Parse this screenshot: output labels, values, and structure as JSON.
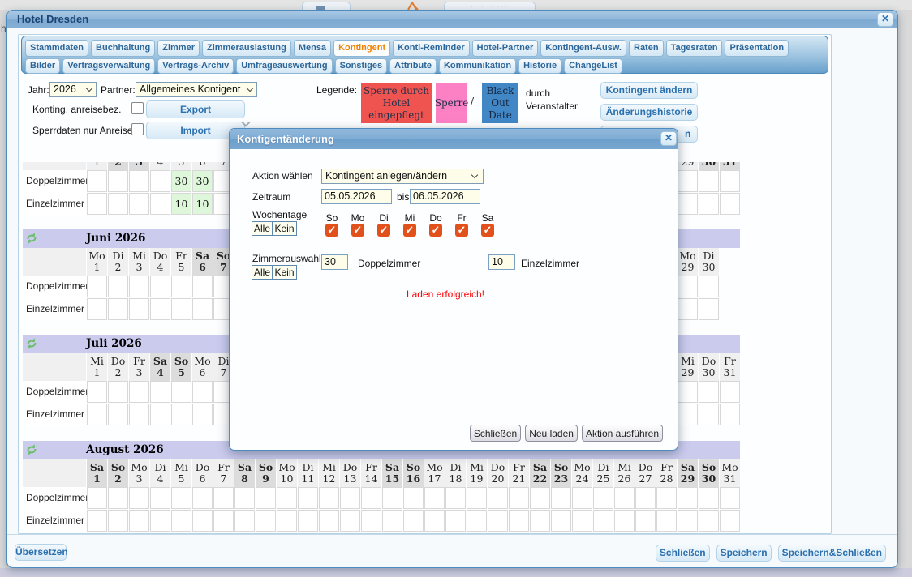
{
  "page": {
    "edge_text": "h"
  },
  "window": {
    "title": "Hotel Dresden"
  },
  "tabs": {
    "row1": [
      {
        "label": "Stammdaten",
        "active": false
      },
      {
        "label": "Buchhaltung",
        "active": false
      },
      {
        "label": "Zimmer",
        "active": false
      },
      {
        "label": "Zimmerauslastung",
        "active": false
      },
      {
        "label": "Mensa",
        "active": false
      },
      {
        "label": "Kontingent",
        "active": true
      },
      {
        "label": "Konti-Reminder",
        "active": false
      },
      {
        "label": "Hotel-Partner",
        "active": false
      },
      {
        "label": "Kontingent-Ausw.",
        "active": false
      },
      {
        "label": "Raten",
        "active": false
      },
      {
        "label": "Tagesraten",
        "active": false
      },
      {
        "label": "Präsentation",
        "active": false
      }
    ],
    "row2": [
      {
        "label": "Bilder",
        "active": false
      },
      {
        "label": "Vertragsverwaltung",
        "active": false
      },
      {
        "label": "Vertrags-Archiv",
        "active": false
      },
      {
        "label": "Umfrageauswertung",
        "active": false
      },
      {
        "label": "Sonstiges",
        "active": false
      },
      {
        "label": "Attribute",
        "active": false
      },
      {
        "label": "Kommunikation",
        "active": false
      },
      {
        "label": "Historie",
        "active": false
      },
      {
        "label": "ChangeList",
        "active": false
      }
    ]
  },
  "toolbar": {
    "year_label": "Jahr:",
    "year_value": "2026",
    "partner_label": "Partner:",
    "partner_value": "Allgemeines Kontigent",
    "konting_label": "Konting. anreisebez.",
    "export_label": "Export",
    "sperrdaten_label": "Sperrdaten nur Anreise",
    "import_label": "Import",
    "legend": {
      "label": "Legende:",
      "hotel_block": "Sperre durch Hotel eingepflegt",
      "sperre": "Sperre",
      "slash": "/",
      "blackout": "Black Out Date",
      "veranstalter_line1": "durch",
      "veranstalter_line2": "Veranstalter",
      "colors": {
        "hotel": "#f05450",
        "sperre": "#fb80c4",
        "blackout": "#4187c6"
      }
    },
    "actions": [
      "Kontingent ändern",
      "Änderungshistorie"
    ],
    "partial_action_text": "n"
  },
  "calendar": {
    "day_names": [
      "Mo",
      "Di",
      "Mi",
      "Do",
      "Fr",
      "Sa",
      "So"
    ],
    "row_labels": [
      "Doppelzimmer",
      "Einzelzimmer"
    ],
    "months": [
      {
        "name": "",
        "days": 31,
        "start": 4,
        "clipped": true,
        "values": {
          "Doppelzimmer": {
            "5": "30",
            "6": "30"
          },
          "Einzelzimmer": {
            "5": "10",
            "6": "10"
          }
        }
      },
      {
        "name": "Juni 2026",
        "days": 30,
        "start": 0,
        "clipped": false,
        "values": {}
      },
      {
        "name": "Juli 2026",
        "days": 31,
        "start": 2,
        "clipped": false,
        "values": {}
      },
      {
        "name": "August 2026",
        "days": 31,
        "start": 5,
        "clipped": false,
        "values": {}
      }
    ]
  },
  "modal": {
    "title": "Kontigentänderung",
    "action_label": "Aktion wählen",
    "action_value": "Kontingent anlegen/ändern",
    "period_label": "Zeitraum",
    "date_from": "05.05.2026",
    "bis_label": "bis",
    "date_to": "06.05.2026",
    "weekdays_label": "Wochentage",
    "all_label": "Alle",
    "none_label": "Kein",
    "weekdays": [
      "So",
      "Mo",
      "Di",
      "Mi",
      "Do",
      "Fr",
      "Sa"
    ],
    "weekdays_checked": [
      true,
      true,
      true,
      true,
      true,
      true,
      true
    ],
    "checkbox_color": "#e2501c",
    "rooms_label": "Zimmerauswahl",
    "double_value": "30",
    "double_label": "Doppelzimmer",
    "single_value": "10",
    "single_label": "Einzelzimmer",
    "status_text": "Laden erfolgreich!",
    "buttons": [
      "Schließen",
      "Neu laden",
      "Aktion ausführen"
    ]
  },
  "footer": {
    "translate_label": "Übersetzen",
    "buttons": [
      "Schließen",
      "Speichern",
      "Speichern&Schließen"
    ]
  }
}
